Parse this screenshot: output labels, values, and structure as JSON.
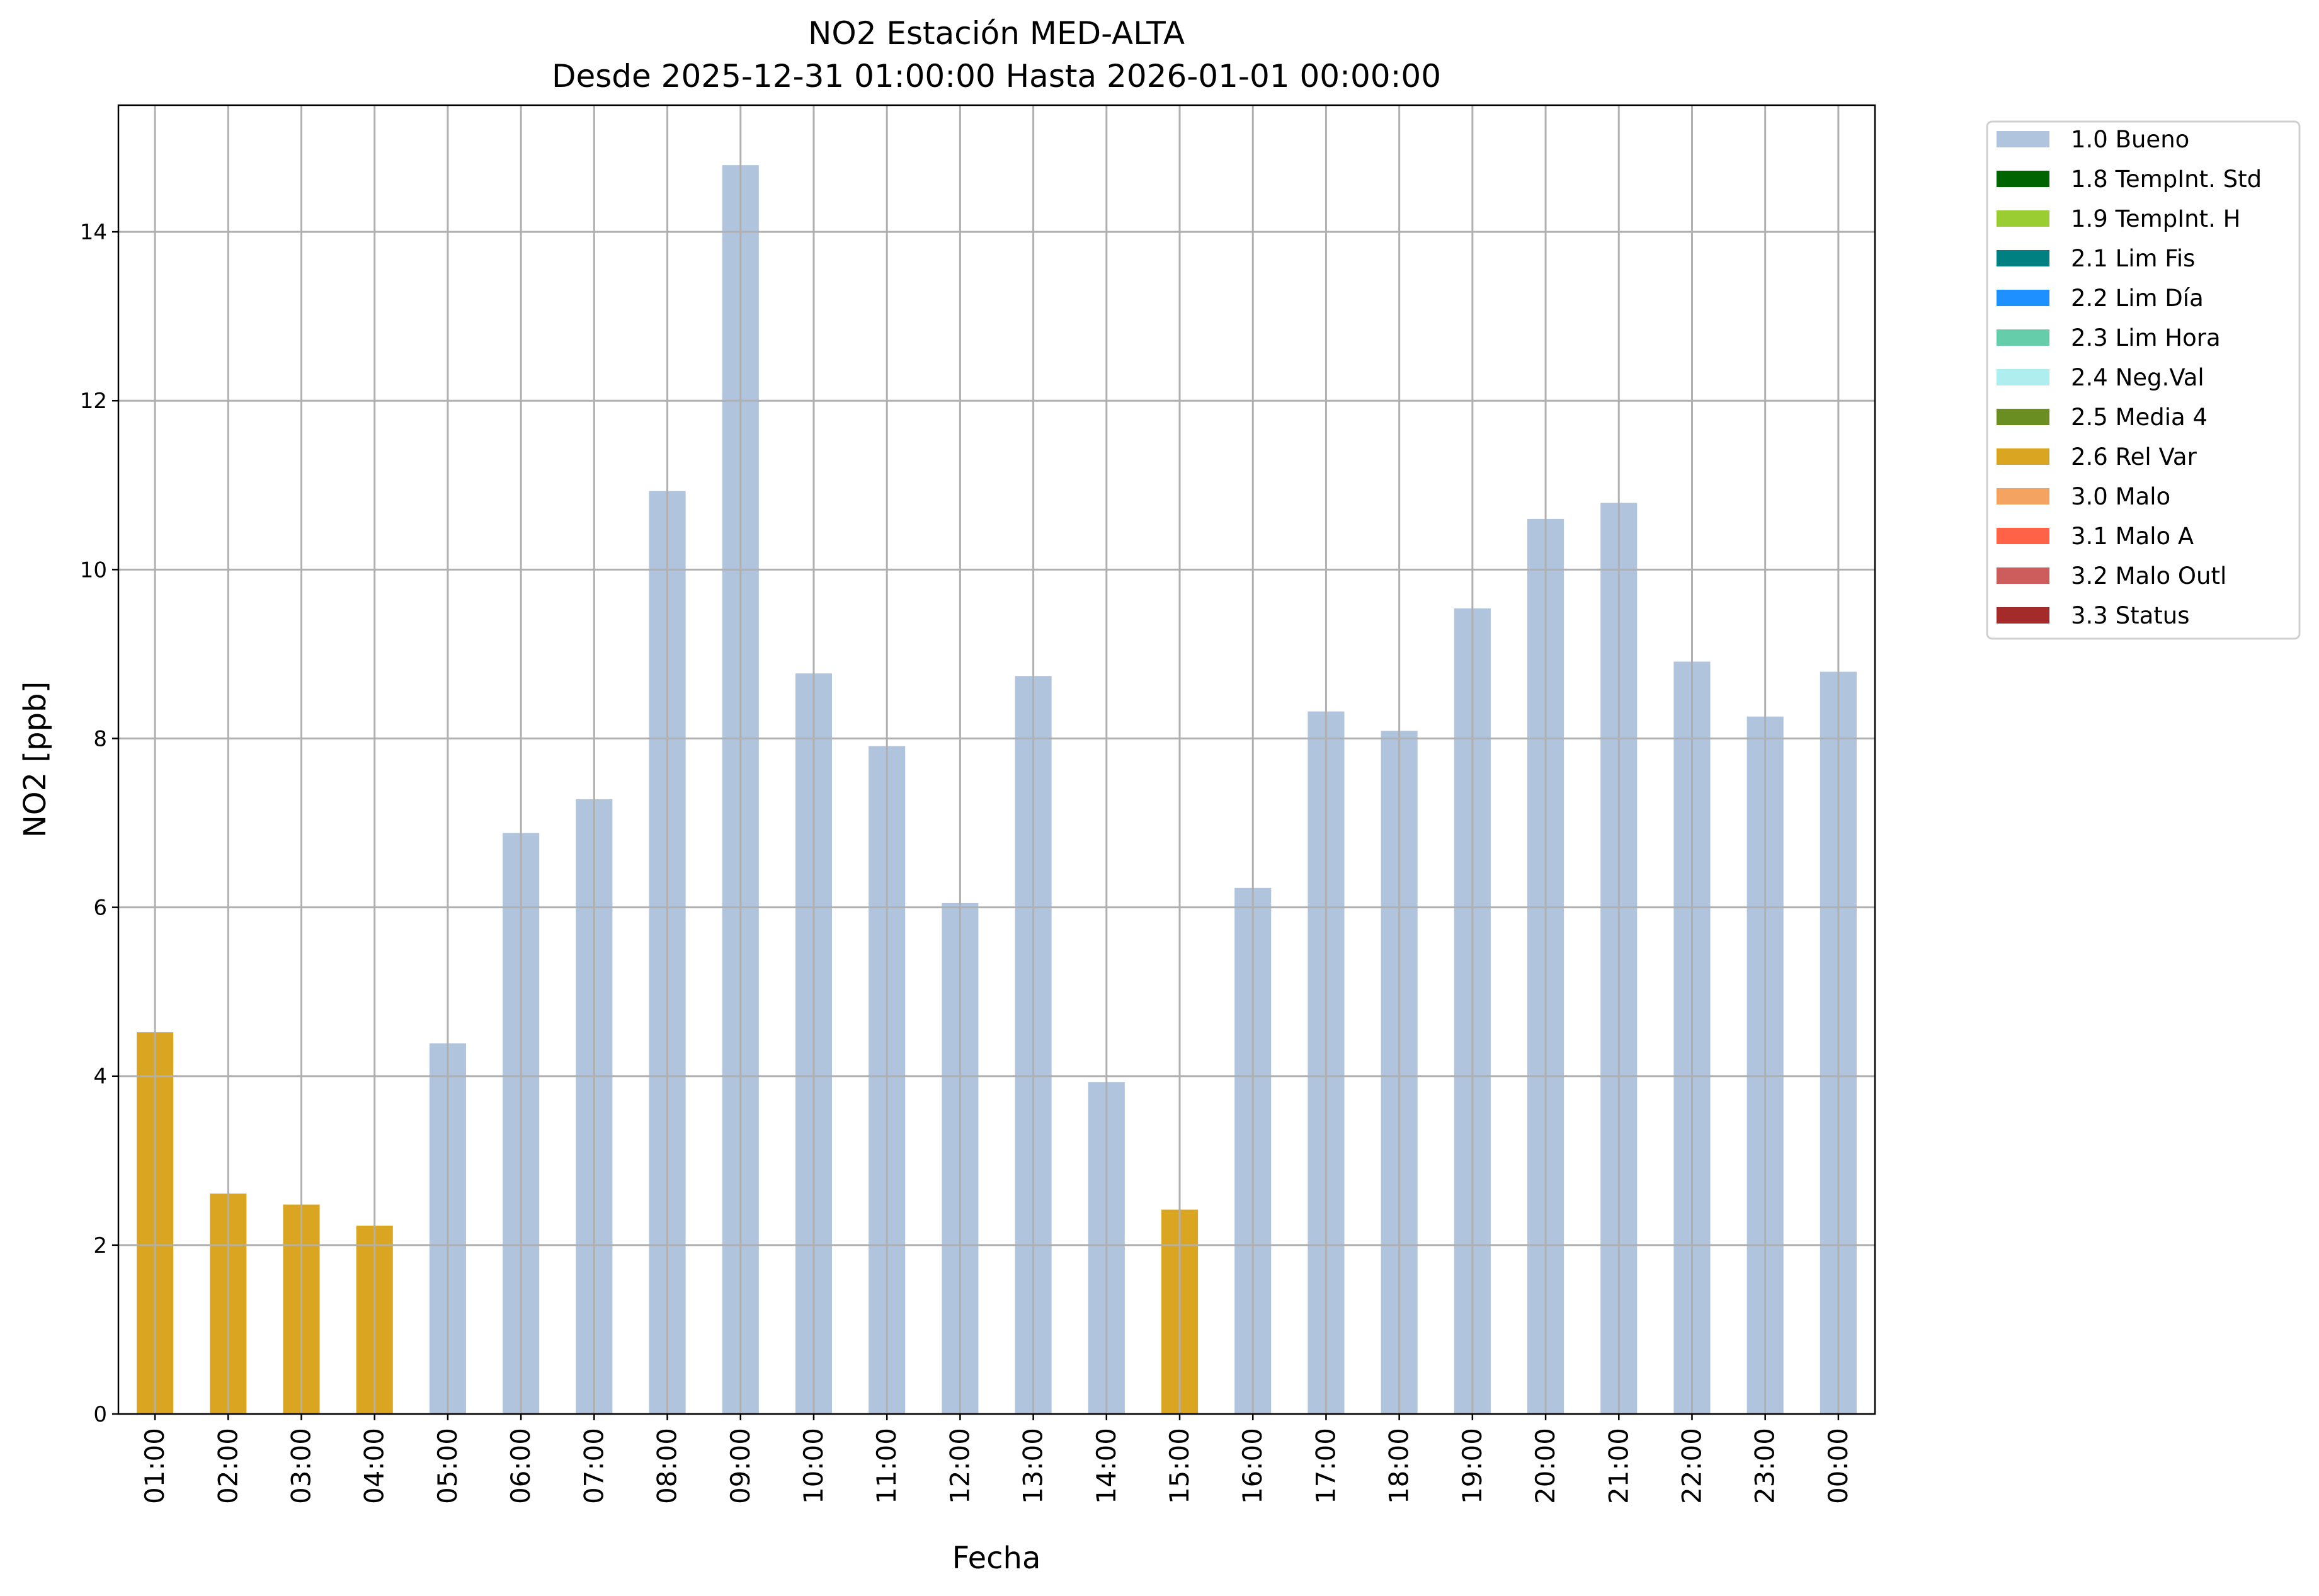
{
  "chart_data": {
    "type": "bar",
    "title": "NO2 Estación MED-ALTA",
    "subtitle": "Desde 2025-12-31 01:00:00 Hasta 2026-01-01 00:00:00",
    "xlabel": "Fecha",
    "ylabel": "NO2 [ppb]",
    "ylim": [
      0,
      15.5
    ],
    "yticks": [
      0,
      2,
      4,
      6,
      8,
      10,
      12,
      14
    ],
    "grid": true,
    "legend_placement": "outside-top-right",
    "categories": [
      "01:00",
      "02:00",
      "03:00",
      "04:00",
      "05:00",
      "06:00",
      "07:00",
      "08:00",
      "09:00",
      "10:00",
      "11:00",
      "12:00",
      "13:00",
      "14:00",
      "15:00",
      "16:00",
      "17:00",
      "18:00",
      "19:00",
      "20:00",
      "21:00",
      "22:00",
      "23:00",
      "00:00"
    ],
    "values": [
      4.52,
      2.61,
      2.48,
      2.23,
      4.39,
      6.88,
      7.28,
      10.93,
      14.79,
      8.77,
      7.91,
      6.05,
      8.74,
      3.93,
      2.42,
      6.23,
      8.32,
      8.09,
      9.54,
      10.6,
      10.79,
      8.91,
      8.26,
      8.79
    ],
    "flags": [
      "2.6 Rel Var",
      "2.6 Rel Var",
      "2.6 Rel Var",
      "2.6 Rel Var",
      "1.0 Bueno",
      "1.0 Bueno",
      "1.0 Bueno",
      "1.0 Bueno",
      "1.0 Bueno",
      "1.0 Bueno",
      "1.0 Bueno",
      "1.0 Bueno",
      "1.0 Bueno",
      "1.0 Bueno",
      "2.6 Rel Var",
      "1.0 Bueno",
      "1.0 Bueno",
      "1.0 Bueno",
      "1.0 Bueno",
      "1.0 Bueno",
      "1.0 Bueno",
      "1.0 Bueno",
      "1.0 Bueno",
      "1.0 Bueno"
    ],
    "legend": [
      {
        "label": "1.0 Bueno",
        "color": "#b0c4de"
      },
      {
        "label": "1.8 TempInt. Std",
        "color": "#006400"
      },
      {
        "label": "1.9 TempInt. H",
        "color": "#9acd32"
      },
      {
        "label": "2.1 Lim Fis",
        "color": "#008080"
      },
      {
        "label": "2.2 Lim Día",
        "color": "#1e90ff"
      },
      {
        "label": "2.3 Lim Hora",
        "color": "#66cdaa"
      },
      {
        "label": "2.4 Neg.Val",
        "color": "#afeeee"
      },
      {
        "label": "2.5 Media 4",
        "color": "#6b8e23"
      },
      {
        "label": "2.6 Rel Var",
        "color": "#daa520"
      },
      {
        "label": "3.0 Malo",
        "color": "#f4a460"
      },
      {
        "label": "3.1 Malo A",
        "color": "#ff6347"
      },
      {
        "label": "3.2 Malo Outl",
        "color": "#cd5c5c"
      },
      {
        "label": "3.3 Status",
        "color": "#a52a2a"
      }
    ],
    "grid_color": "#b0b0b0"
  }
}
